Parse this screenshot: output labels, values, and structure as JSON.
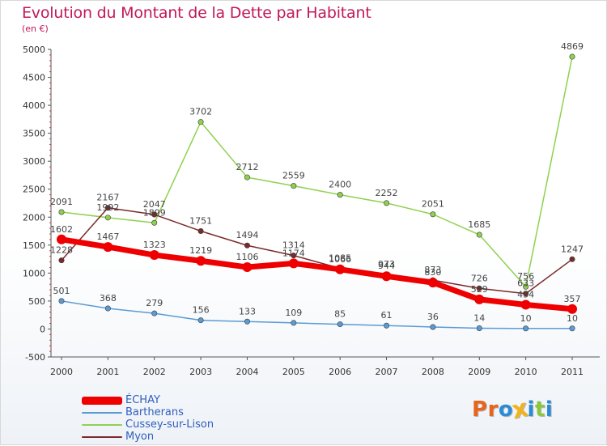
{
  "title": "Evolution du Montant de la Dette par Habitant",
  "subtitle": "(en €)",
  "logo_text": "Proxiti",
  "colors": {
    "title": "#c2185b",
    "ECHAY": "#ee0000",
    "Bartherans": "#5b9bd5",
    "Cussey-sur-Lison": "#8fd14f",
    "Myon": "#7a2a2a",
    "logo": [
      "#e8641b",
      "#e8641b",
      "#2b8bd6",
      "#f2b41a",
      "#2b8bd6",
      "#8cc63f",
      "#2b8bd6"
    ]
  },
  "chart_data": {
    "type": "line",
    "title": "Evolution du Montant de la Dette par Habitant",
    "ylabel": "(en €)",
    "x": [
      "2000",
      "2001",
      "2002",
      "2003",
      "2004",
      "2005",
      "2006",
      "2007",
      "2008",
      "2009",
      "2010",
      "2011"
    ],
    "ylim": [
      -500,
      5000
    ],
    "yticks": [
      "-500",
      "0",
      "500",
      "1000",
      "1500",
      "2000",
      "2500",
      "3000",
      "3500",
      "4000",
      "4500",
      "5000"
    ],
    "grid": false,
    "legend_position": "bottom-left",
    "series": [
      {
        "name": "ÉCHAY",
        "values": [
          1602,
          1467,
          1323,
          1219,
          1106,
          1174,
          1066,
          944,
          830,
          529,
          434,
          357
        ],
        "labels": [
          "1602",
          "1467",
          "1323",
          "1219",
          "1106",
          "1174",
          "1066",
          "944",
          "830",
          "529",
          "434",
          "357"
        ]
      },
      {
        "name": "Bartherans",
        "values": [
          501,
          368,
          279,
          156,
          133,
          109,
          85,
          61,
          36,
          14,
          10,
          10
        ],
        "labels": [
          "501",
          "368",
          "279",
          "156",
          "133",
          "109",
          "85",
          "61",
          "36",
          "14",
          "10",
          "10"
        ]
      },
      {
        "name": "Cussey-sur-Lison",
        "values": [
          2091,
          1992,
          1899,
          3702,
          2712,
          2559,
          2400,
          2252,
          2051,
          1685,
          756,
          4869
        ],
        "labels": [
          "2091",
          "1992",
          "1899",
          "3702",
          "2712",
          "2559",
          "2400",
          "2252",
          "2051",
          "1685",
          "756",
          "4869"
        ]
      },
      {
        "name": "Myon",
        "values": [
          1228,
          2167,
          2047,
          1751,
          1494,
          1314,
          1085,
          973,
          873,
          726,
          633,
          1247
        ],
        "labels": [
          "1228",
          "2167",
          "2047",
          "1751",
          "1494",
          "1314",
          "1085",
          "973",
          "873",
          "726",
          "633",
          "1247"
        ]
      }
    ]
  }
}
